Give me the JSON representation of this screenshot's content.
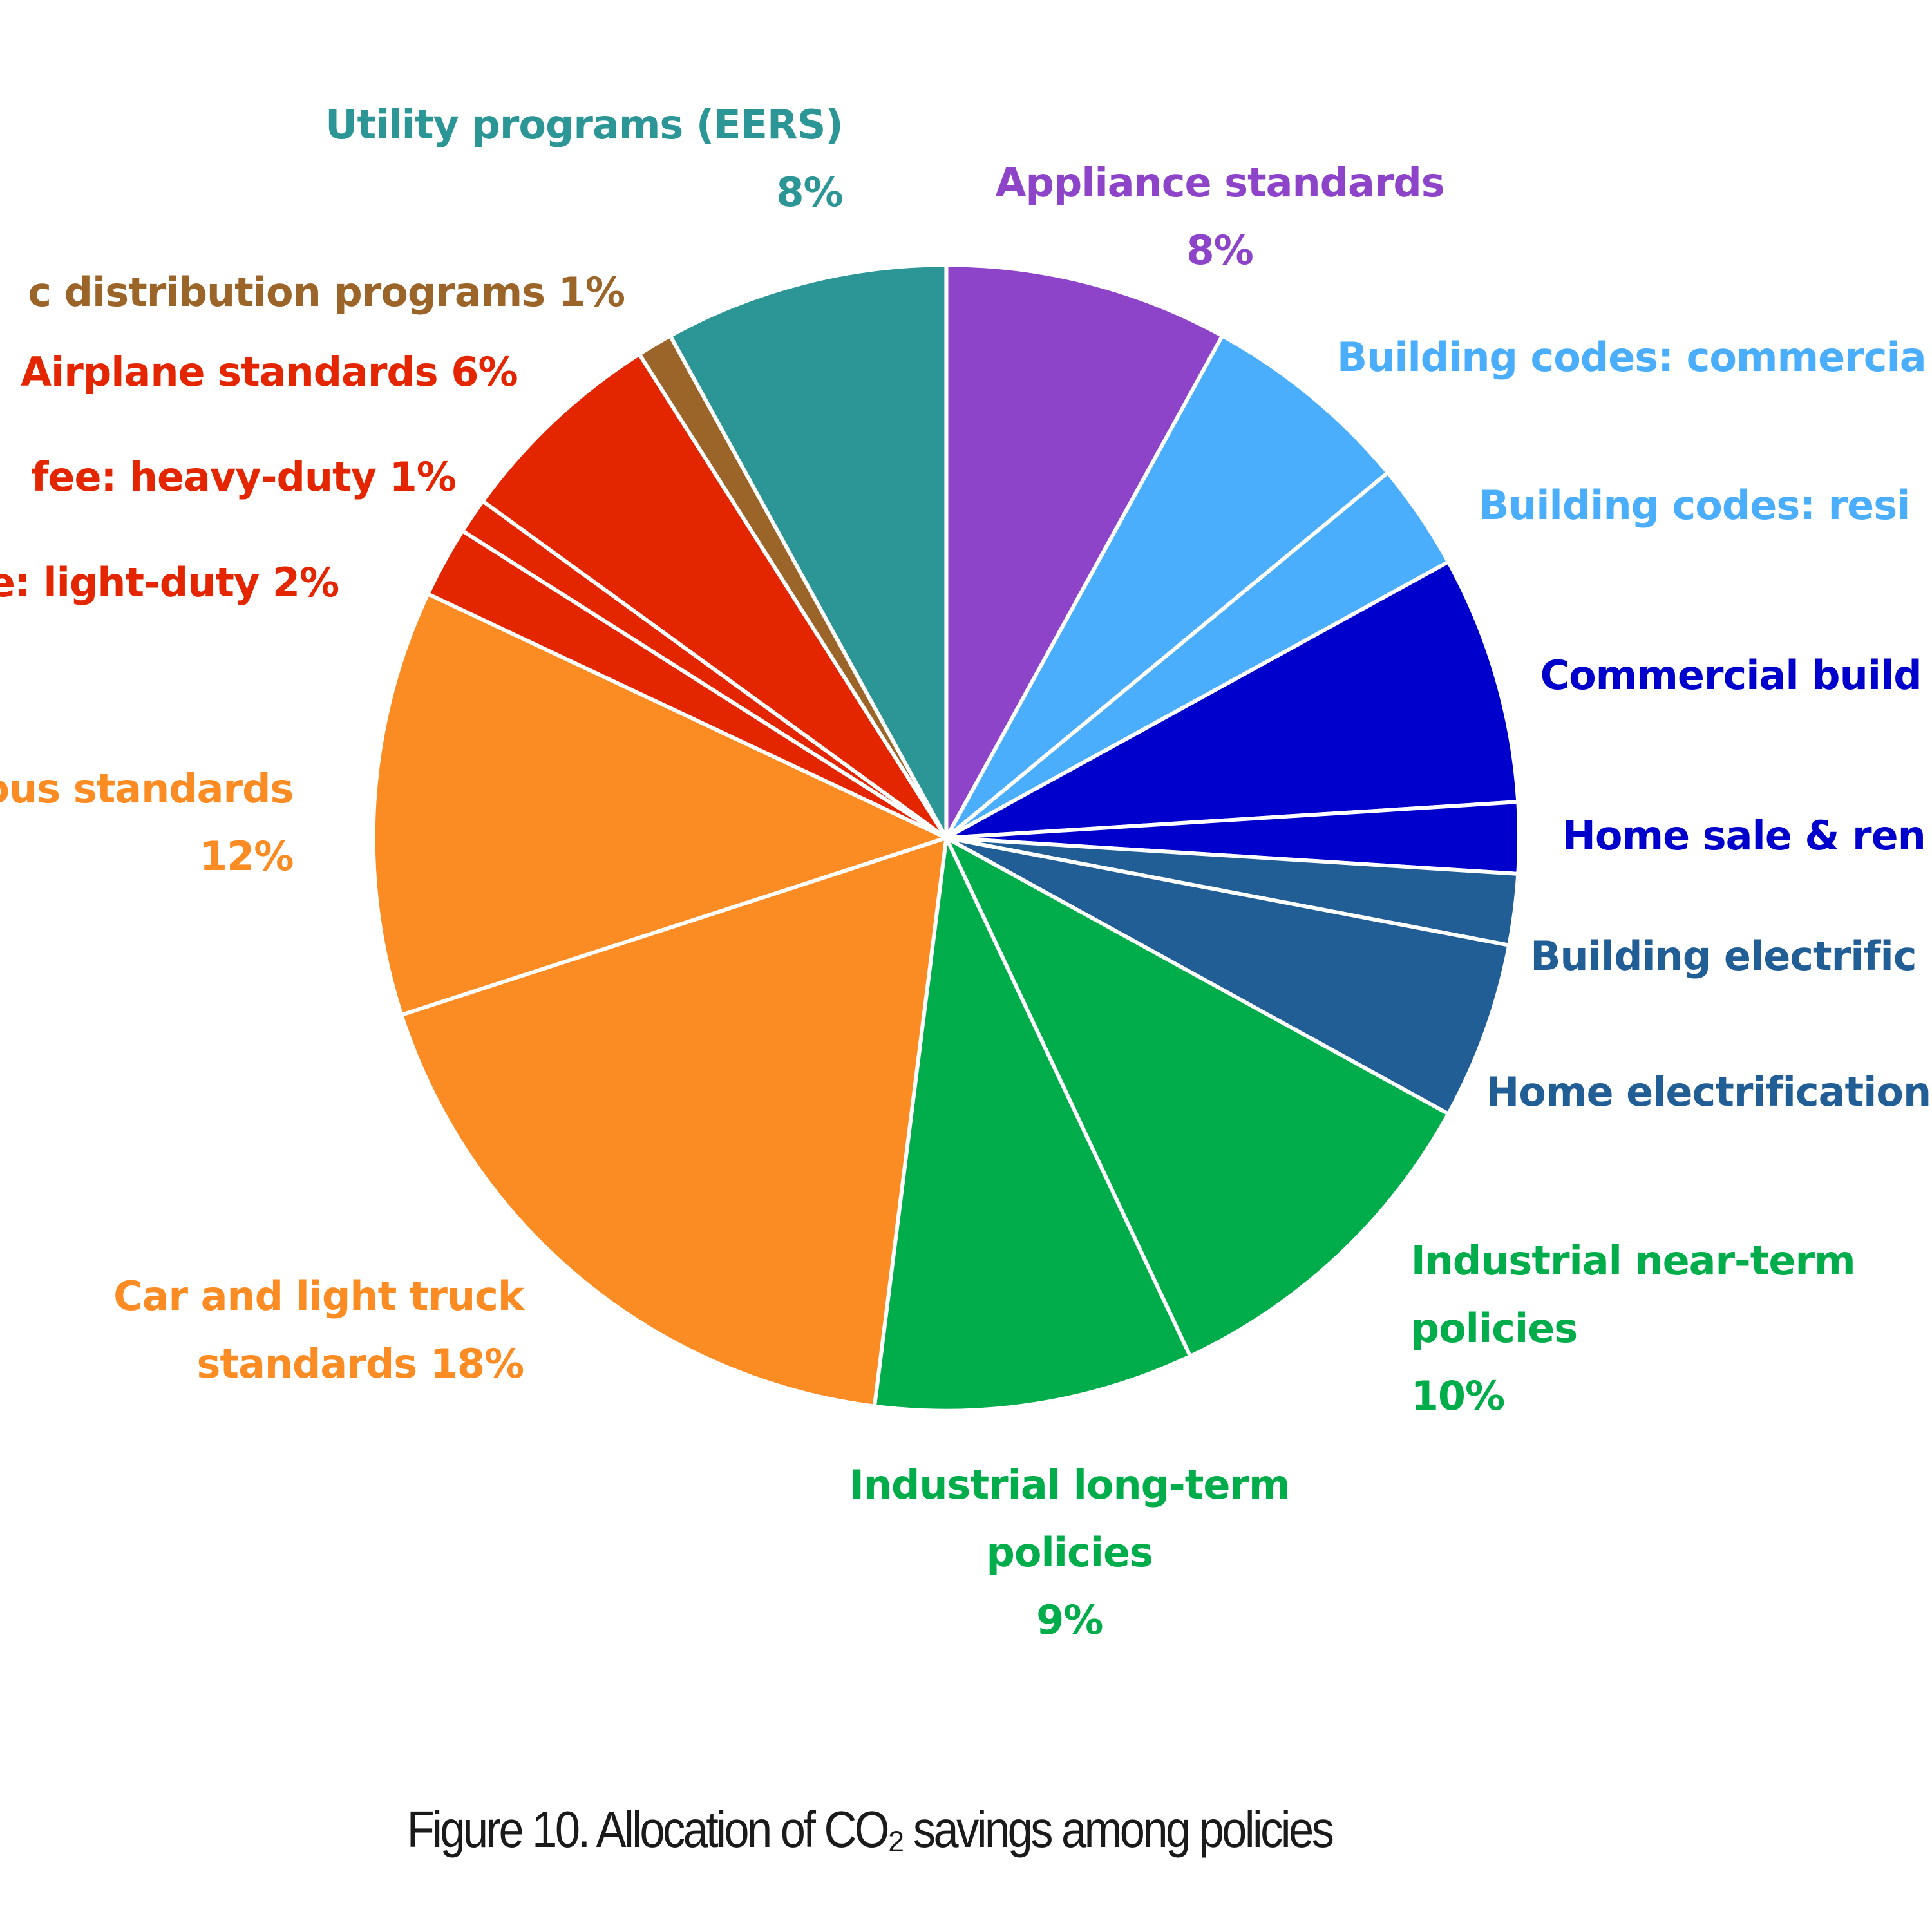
{
  "chart_data": {
    "type": "pie",
    "title": "Figure 10. Allocation of CO₂ savings among policies",
    "categories": [
      "Appliance standards",
      "Building codes: commercia",
      "Building codes: resi",
      "Commercial build",
      "Home sale & ren",
      "Building electrific",
      "Home electrification",
      "Industrial near-term policies",
      "Industrial long-term policies",
      "Car and light truck standards",
      "ous standards",
      "e: light-duty",
      "fee: heavy-duty",
      "Airplane standards",
      "c distribution programs",
      "Utility programs (EERS)"
    ],
    "values": [
      8,
      6,
      3,
      7,
      2,
      2,
      5,
      10,
      9,
      18,
      12,
      2,
      1,
      6,
      1,
      8
    ],
    "value_labels": [
      "8%",
      null,
      null,
      null,
      null,
      null,
      null,
      "10%",
      "9%",
      "18%",
      "12%",
      "2%",
      "1%",
      "6%",
      "1%",
      "8%"
    ],
    "colors": [
      "#8e44c8",
      "#4aaefc",
      "#4aaefc",
      "#0000cc",
      "#0000cc",
      "#225e96",
      "#225e96",
      "#00ad4a",
      "#00ad4a",
      "#fb8c23",
      "#fb8c23",
      "#e42600",
      "#e42600",
      "#e42600",
      "#9b6428",
      "#2c9696"
    ]
  }
}
